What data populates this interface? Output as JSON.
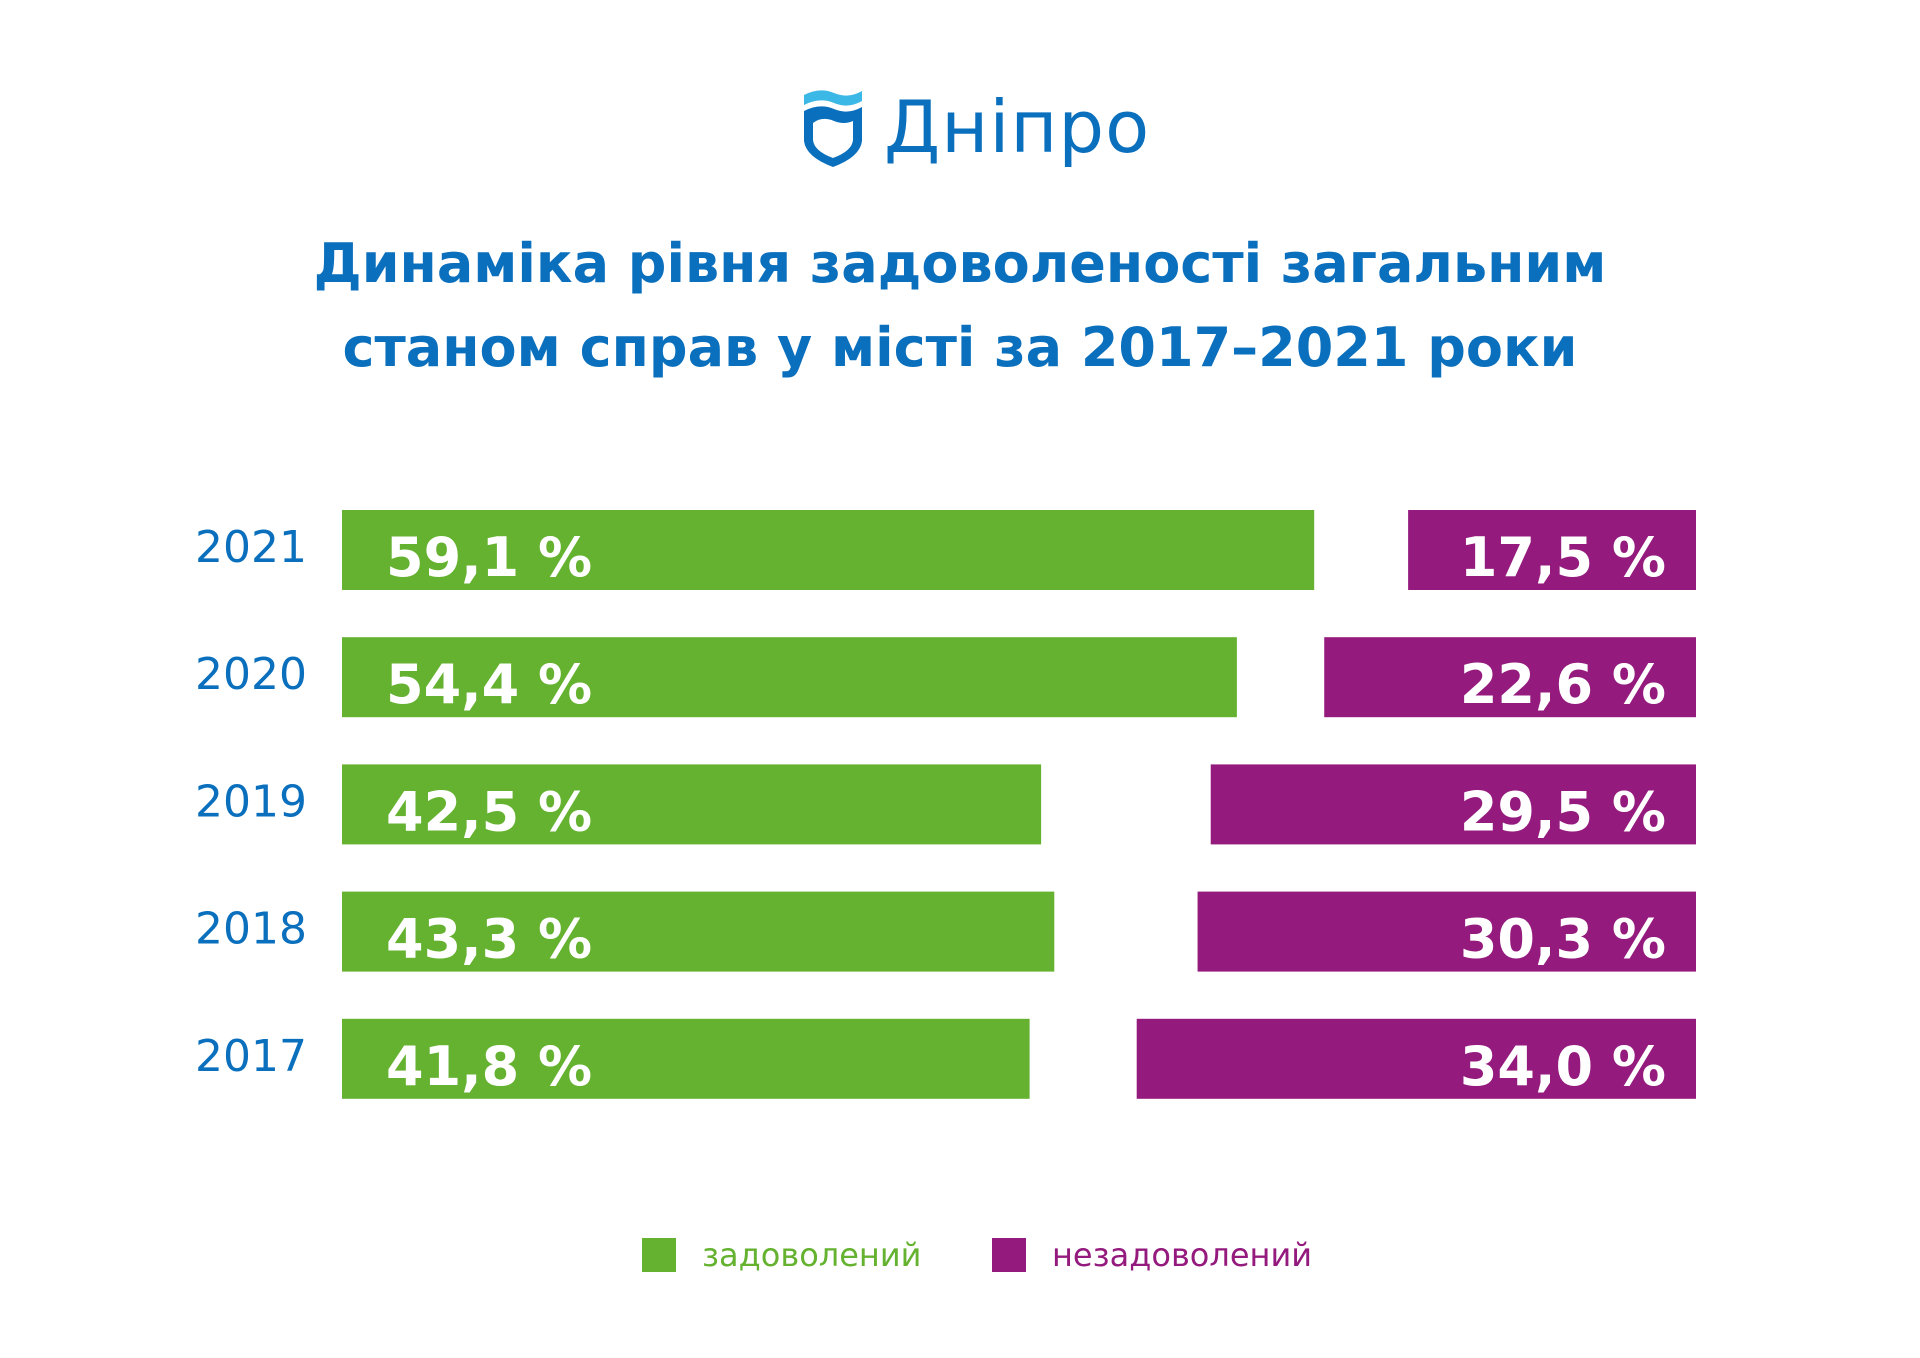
{
  "logo": {
    "text": "Дніпро"
  },
  "title": [
    "Динаміка рівня задоволеності загальним",
    "станом справ у місті за 2017–2021 роки"
  ],
  "colors": {
    "brand": "#0a6fbd",
    "logo_wave": "#3cb8e6",
    "satisfied": "#64b22f",
    "dissatisfied": "#941a7d"
  },
  "chart_data": {
    "type": "bar",
    "orientation": "horizontal-diverging",
    "categories": [
      "2021",
      "2020",
      "2019",
      "2018",
      "2017"
    ],
    "series": [
      {
        "name": "задоволений",
        "values": [
          59.1,
          54.4,
          42.5,
          43.3,
          41.8
        ],
        "labels": [
          "59,1 %",
          "54,4 %",
          "42,5 %",
          "43,3 %",
          "41,8 %"
        ]
      },
      {
        "name": "незадоволений",
        "values": [
          17.5,
          22.6,
          29.5,
          30.3,
          34.0
        ],
        "labels": [
          "17,5 %",
          "22,6 %",
          "29,5 %",
          "30,3 %",
          "34,0 %"
        ]
      }
    ],
    "unit": "%",
    "legend_position": "bottom"
  }
}
